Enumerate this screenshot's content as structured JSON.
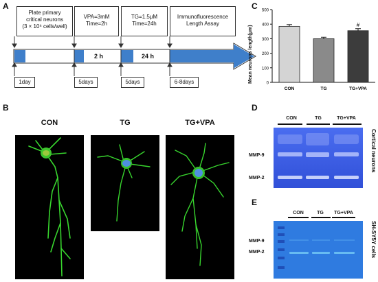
{
  "panel_a": {
    "letter": "A",
    "steps": [
      {
        "line1": "Plate primary",
        "line2": "critical neurons",
        "line3": "(3 × 10⁶ cells/well)"
      },
      {
        "line1": "VPA=3mM",
        "line2": "Time=2h"
      },
      {
        "line1": "TG=1.5μM",
        "line2": "Time=24h"
      },
      {
        "line1": "Immunofluorescence",
        "line2": "Length Assay"
      }
    ],
    "durations": [
      "2 h",
      "24 h"
    ],
    "days": [
      "1day",
      "5days",
      "5days",
      "6-8days"
    ],
    "arrow_color": "#3f7fca"
  },
  "panel_b": {
    "letter": "B",
    "conditions": [
      "CON",
      "TG",
      "TG+VPA"
    ],
    "neurite_color": "#38d62e",
    "nucleus_color": "#4f8fe0"
  },
  "panel_c": {
    "letter": "C",
    "chart_data": {
      "type": "bar",
      "categories": [
        "CON",
        "TG",
        "TG+VPA"
      ],
      "values": [
        385,
        300,
        355
      ],
      "errors": [
        12,
        10,
        14
      ],
      "colors": [
        "#d4d4d4",
        "#8a8a8a",
        "#3c3c3c"
      ],
      "ylabel": "Mean neurons length(μm)",
      "ylim": [
        0,
        500
      ],
      "yticks": [
        0,
        100,
        200,
        300,
        400,
        500
      ],
      "annotations": [
        {
          "category": "TG+VPA",
          "text": "#"
        }
      ]
    }
  },
  "panel_d": {
    "letter": "D",
    "columns": [
      "CON",
      "TG",
      "TG+VPA"
    ],
    "bands": [
      "MMP-9",
      "MMP-2"
    ],
    "side_label": "Cortical neurons",
    "gel_color": "#3b5fe0"
  },
  "panel_e": {
    "letter": "E",
    "columns": [
      "CON",
      "TG",
      "TG+VPA"
    ],
    "bands": [
      "MMP-9",
      "MMP-2"
    ],
    "side_label": "SH-SY5Y cells",
    "gel_color": "#2f7be0"
  }
}
